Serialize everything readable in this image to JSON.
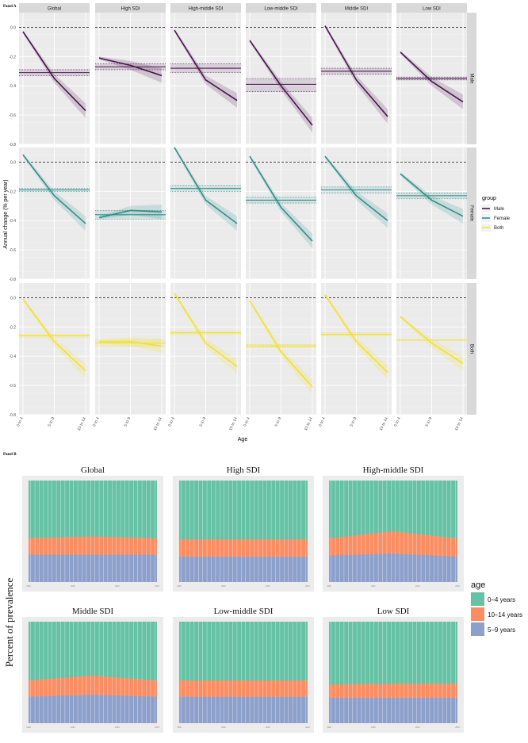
{
  "panel_a_label": "Panel A",
  "panel_b_label": "Panel B",
  "colors": {
    "Male": "#4a1450",
    "Female": "#2f8f88",
    "Both": "#f2e22a",
    "strip_bg": "#d9d9d9",
    "panel_bg": "#ebebeb",
    "age_0_4": "#66c2a5",
    "age_10_14": "#fc8d62",
    "age_5_9": "#8da0cb"
  },
  "chart_data": [
    {
      "type": "line",
      "facet_columns": [
        "Global",
        "High SDI",
        "High-middle SDI",
        "Low-middle SDI",
        "Middle SDI",
        "Low SDI"
      ],
      "facet_rows": [
        "Male",
        "Female",
        "Both"
      ],
      "categories": [
        "0 to 4",
        "5 to 9",
        "10 to 14"
      ],
      "xlabel": "Age",
      "ylabel": "Annual change (% per year)",
      "y_ticks": [
        "0.0",
        "-0.2",
        "-0.4",
        "-0.6",
        "-0.8"
      ],
      "ylim": [
        -0.8,
        0.1
      ],
      "grid": true,
      "legend": {
        "title": "group",
        "entries": [
          "Male",
          "Female",
          "Both"
        ],
        "position": "right"
      },
      "series": [
        {
          "row": "Male",
          "col": "Global",
          "values": [
            -0.03,
            -0.35,
            -0.57
          ],
          "avg": -0.31,
          "ci": [
            -0.29,
            -0.33
          ]
        },
        {
          "row": "Male",
          "col": "High SDI",
          "values": [
            -0.21,
            -0.26,
            -0.33
          ],
          "avg": -0.27,
          "ci": [
            -0.25,
            -0.29
          ]
        },
        {
          "row": "Male",
          "col": "High-middle SDI",
          "values": [
            -0.02,
            -0.36,
            -0.5
          ],
          "avg": -0.28,
          "ci": [
            -0.25,
            -0.31
          ]
        },
        {
          "row": "Male",
          "col": "Low-middle SDI",
          "values": [
            -0.09,
            -0.4,
            -0.67
          ],
          "avg": -0.39,
          "ci": [
            -0.35,
            -0.44
          ]
        },
        {
          "row": "Male",
          "col": "Middle SDI",
          "values": [
            0.01,
            -0.36,
            -0.61
          ],
          "avg": -0.3,
          "ci": [
            -0.28,
            -0.32
          ]
        },
        {
          "row": "Male",
          "col": "Low SDI",
          "values": [
            -0.17,
            -0.37,
            -0.51
          ],
          "avg": -0.35,
          "ci": [
            -0.34,
            -0.36
          ]
        },
        {
          "row": "Female",
          "col": "Global",
          "values": [
            0.05,
            -0.23,
            -0.42
          ],
          "avg": -0.19,
          "ci": [
            -0.18,
            -0.2
          ]
        },
        {
          "row": "Female",
          "col": "High SDI",
          "values": [
            -0.38,
            -0.33,
            -0.34
          ],
          "avg": -0.36,
          "ci": [
            -0.33,
            -0.39
          ]
        },
        {
          "row": "Female",
          "col": "High-middle SDI",
          "values": [
            0.1,
            -0.26,
            -0.42
          ],
          "avg": -0.18,
          "ci": [
            -0.16,
            -0.2
          ]
        },
        {
          "row": "Female",
          "col": "Low-middle SDI",
          "values": [
            0.04,
            -0.31,
            -0.54
          ],
          "avg": -0.26,
          "ci": [
            -0.24,
            -0.28
          ]
        },
        {
          "row": "Female",
          "col": "Middle SDI",
          "values": [
            0.04,
            -0.23,
            -0.4
          ],
          "avg": -0.19,
          "ci": [
            -0.17,
            -0.21
          ]
        },
        {
          "row": "Female",
          "col": "Low SDI",
          "values": [
            -0.08,
            -0.26,
            -0.37
          ],
          "avg": -0.23,
          "ci": [
            -0.21,
            -0.25
          ]
        },
        {
          "row": "Both",
          "col": "Global",
          "values": [
            -0.01,
            -0.3,
            -0.5
          ],
          "avg": -0.26,
          "ci": [
            -0.25,
            -0.27
          ]
        },
        {
          "row": "Both",
          "col": "High SDI",
          "values": [
            -0.3,
            -0.3,
            -0.33
          ],
          "avg": -0.31,
          "ci": [
            -0.29,
            -0.33
          ]
        },
        {
          "row": "Both",
          "col": "High-middle SDI",
          "values": [
            0.03,
            -0.31,
            -0.47
          ],
          "avg": -0.24,
          "ci": [
            -0.23,
            -0.25
          ]
        },
        {
          "row": "Both",
          "col": "Low-middle SDI",
          "values": [
            -0.02,
            -0.37,
            -0.61
          ],
          "avg": -0.33,
          "ci": [
            -0.32,
            -0.34
          ]
        },
        {
          "row": "Both",
          "col": "Middle SDI",
          "values": [
            0.02,
            -0.3,
            -0.51
          ],
          "avg": -0.25,
          "ci": [
            -0.24,
            -0.26
          ]
        },
        {
          "row": "Both",
          "col": "Low SDI",
          "values": [
            -0.13,
            -0.31,
            -0.45
          ],
          "avg": -0.29,
          "ci": [
            -0.29,
            -0.29
          ]
        }
      ]
    },
    {
      "type": "area",
      "stacked": true,
      "ylabel": "Percent of prevalence",
      "legend": {
        "title": "age",
        "entries": [
          "0–4 years",
          "10–14 years",
          "5–9 years"
        ],
        "position": "right"
      },
      "x": [
        1990,
        1991,
        1992,
        1993,
        1994,
        1995,
        1996,
        1997,
        1998,
        1999,
        2000,
        2001,
        2002,
        2003,
        2004,
        2005,
        2006,
        2007,
        2008,
        2009,
        2010,
        2011,
        2012,
        2013,
        2014,
        2015,
        2016,
        2017,
        2018,
        2019
      ],
      "panels": [
        {
          "name": "Global",
          "share_5_9": [
            0.27,
            0.27
          ],
          "share_10_14": [
            0.16,
            0.18,
            0.16
          ]
        },
        {
          "name": "High SDI",
          "share_5_9": [
            0.25,
            0.25
          ],
          "share_10_14": [
            0.17,
            0.17,
            0.17
          ]
        },
        {
          "name": "High-middle SDI",
          "share_5_9": [
            0.26,
            0.28,
            0.25
          ],
          "share_10_14": [
            0.17,
            0.22,
            0.18
          ]
        },
        {
          "name": "Middle SDI",
          "share_5_9": [
            0.26,
            0.28,
            0.26
          ],
          "share_10_14": [
            0.16,
            0.19,
            0.16
          ]
        },
        {
          "name": "Low-middle SDI",
          "share_5_9": [
            0.26,
            0.26
          ],
          "share_10_14": [
            0.16,
            0.16,
            0.16
          ]
        },
        {
          "name": "Low SDI",
          "share_5_9": [
            0.25,
            0.25
          ],
          "share_10_14": [
            0.13,
            0.14,
            0.14
          ]
        }
      ]
    }
  ]
}
